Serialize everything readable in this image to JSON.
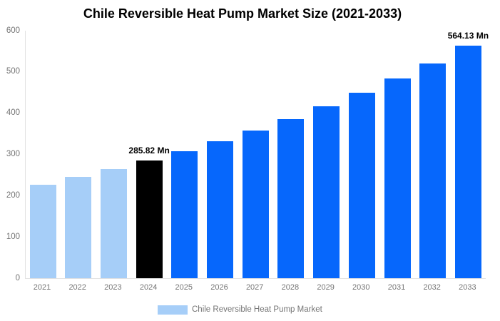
{
  "title": "Chile Reversible Heat Pump Market Size (2021-2033)",
  "legend": {
    "label": "Chile Reversible Heat Pump Market",
    "swatch_color": "#a6cef8"
  },
  "colors": {
    "historical_bar": "#a6cef8",
    "current_bar": "#000000",
    "forecast_bar": "#0667fc",
    "axis_text": "#757575",
    "axis_line": "#e2e2e2",
    "title_text": "#000000"
  },
  "chart_data": {
    "type": "bar",
    "title": "Chile Reversible Heat Pump Market Size (2021-2033)",
    "categories": [
      "2021",
      "2022",
      "2023",
      "2024",
      "2025",
      "2026",
      "2027",
      "2028",
      "2029",
      "2030",
      "2031",
      "2032",
      "2033"
    ],
    "values": [
      227,
      245,
      264,
      285.82,
      308,
      332,
      358,
      386,
      416,
      449,
      484,
      521,
      564.13
    ],
    "point_colors": [
      "#a6cef8",
      "#a6cef8",
      "#a6cef8",
      "#000000",
      "#0667fc",
      "#0667fc",
      "#0667fc",
      "#0667fc",
      "#0667fc",
      "#0667fc",
      "#0667fc",
      "#0667fc",
      "#0667fc"
    ],
    "annotations": [
      {
        "index": 3,
        "text": "285.82 Mn"
      },
      {
        "index": 12,
        "text": "564.13 Mn"
      }
    ],
    "xlabel": "",
    "ylabel": "",
    "ylim": [
      0,
      600
    ],
    "yticks": [
      0,
      100,
      200,
      300,
      400,
      500,
      600
    ],
    "grid": false,
    "legend_position": "bottom",
    "legend_entries": [
      "Chile Reversible Heat Pump Market"
    ],
    "unit": "Mn"
  }
}
